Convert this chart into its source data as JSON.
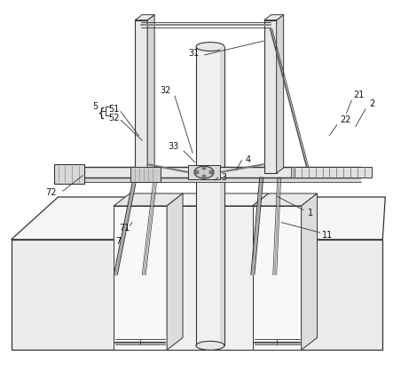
{
  "fig_width": 4.43,
  "fig_height": 4.18,
  "dpi": 100,
  "bg_color": "#ffffff",
  "lc": "#333333",
  "lc_thin": "#555555",
  "fill_light": "#f0f0f0",
  "fill_mid": "#e0e0e0",
  "fill_dark": "#cccccc",
  "fill_white": "#fafafa"
}
